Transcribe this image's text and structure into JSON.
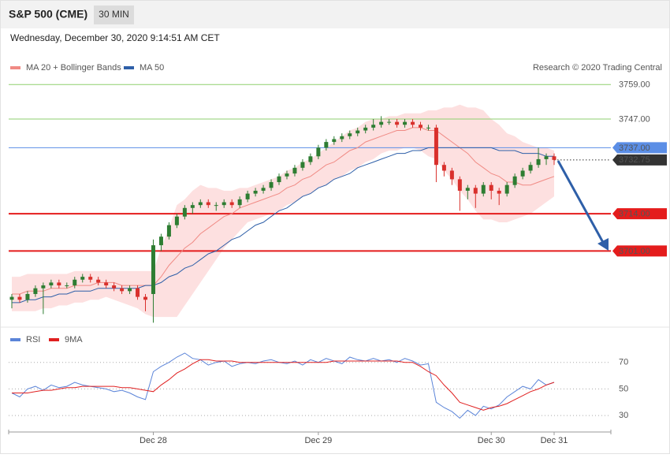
{
  "header": {
    "symbol": "S&P 500 (CME)",
    "interval": "30 MIN",
    "timestamp": "Wednesday, December 30, 2020 9:14:51 AM CET",
    "credit": "Research © 2020 Trading Central"
  },
  "chart_data": [
    {
      "type": "candlestick",
      "up_color": "#2e7d32",
      "down_color": "#d9302c",
      "band_color": "#fde0e0",
      "ylim": [
        3675,
        3772
      ],
      "open": [
        3684,
        3685,
        3684,
        3686,
        3688,
        3689,
        3690,
        3689,
        3689,
        3691,
        3692,
        3691,
        3690,
        3689,
        3688,
        3687,
        3688,
        3685,
        3686,
        3703,
        3706,
        3710,
        3713,
        3716,
        3717,
        3718,
        3717,
        3717,
        3718,
        3717,
        3719,
        3721,
        3722,
        3723,
        3725,
        3727,
        3728,
        3730,
        3732,
        3734,
        3737,
        3739,
        3740,
        3741,
        3742,
        3743,
        3744,
        3745,
        3746,
        3746,
        3745,
        3746,
        3745,
        3744,
        3744,
        3731,
        3729,
        3726,
        3722,
        3723,
        3721,
        3724,
        3722,
        3721,
        3724,
        3727,
        3729,
        3731,
        3733,
        3734
      ],
      "high": [
        3686,
        3686,
        3687,
        3689,
        3690,
        3691,
        3691,
        3690,
        3692,
        3693,
        3693,
        3692,
        3691,
        3690,
        3689,
        3689,
        3689,
        3686,
        3705,
        3707,
        3711,
        3714,
        3717,
        3718,
        3719,
        3719,
        3718,
        3719,
        3719,
        3720,
        3722,
        3723,
        3724,
        3726,
        3728,
        3729,
        3731,
        3733,
        3735,
        3738,
        3740,
        3741,
        3742,
        3743,
        3744,
        3745,
        3747,
        3748,
        3747,
        3747,
        3747,
        3747,
        3746,
        3745,
        3745,
        3732,
        3730,
        3727,
        3724,
        3724,
        3725,
        3725,
        3723,
        3725,
        3728,
        3730,
        3732,
        3737,
        3735,
        3735
      ],
      "low": [
        3681,
        3683,
        3683,
        3685,
        3679,
        3688,
        3688,
        3688,
        3688,
        3690,
        3690,
        3689,
        3688,
        3687,
        3686,
        3686,
        3684,
        3680,
        3676,
        3701,
        3705,
        3709,
        3712,
        3714,
        3716,
        3716,
        3715,
        3716,
        3716,
        3716,
        3718,
        3720,
        3721,
        3722,
        3724,
        3726,
        3727,
        3729,
        3731,
        3733,
        3736,
        3738,
        3739,
        3740,
        3741,
        3742,
        3743,
        3744,
        3745,
        3744,
        3744,
        3744,
        3743,
        3743,
        3725,
        3727,
        3724,
        3715,
        3719,
        3716,
        3720,
        3719,
        3717,
        3720,
        3723,
        3726,
        3728,
        3730,
        3731,
        3731
      ],
      "close": [
        3685,
        3684,
        3686,
        3688,
        3689,
        3690,
        3689,
        3689,
        3691,
        3692,
        3691,
        3690,
        3689,
        3688,
        3687,
        3688,
        3685,
        3684,
        3703,
        3706,
        3710,
        3713,
        3716,
        3717,
        3718,
        3717,
        3717,
        3718,
        3717,
        3719,
        3721,
        3722,
        3723,
        3725,
        3727,
        3728,
        3730,
        3732,
        3734,
        3737,
        3739,
        3740,
        3741,
        3742,
        3743,
        3744,
        3745,
        3746,
        3746,
        3745,
        3746,
        3745,
        3744,
        3744,
        3731,
        3729,
        3726,
        3722,
        3723,
        3721,
        3724,
        3722,
        3721,
        3724,
        3727,
        3729,
        3731,
        3733,
        3734,
        3732.75
      ],
      "series": [
        {
          "name": "MA 20 + Bollinger Bands",
          "color": "#f08a84",
          "values": [
            3686,
            3686,
            3687,
            3687,
            3687,
            3688,
            3688,
            3688,
            3689,
            3689,
            3689,
            3690,
            3690,
            3690,
            3689,
            3689,
            3689,
            3689,
            3689,
            3692,
            3696,
            3699,
            3702,
            3704,
            3707,
            3709,
            3711,
            3713,
            3714,
            3716,
            3717,
            3718,
            3719,
            3720,
            3721,
            3723,
            3724,
            3726,
            3727,
            3729,
            3731,
            3732,
            3734,
            3736,
            3737,
            3739,
            3740,
            3741,
            3742,
            3743,
            3743,
            3744,
            3744,
            3743,
            3743,
            3741,
            3739,
            3737,
            3735,
            3732,
            3730,
            3728,
            3727,
            3725,
            3725,
            3724,
            3724,
            3725,
            3726,
            3727
          ],
          "upper": [
            3692,
            3692,
            3693,
            3693,
            3693,
            3693,
            3693,
            3693,
            3694,
            3694,
            3694,
            3694,
            3694,
            3694,
            3694,
            3694,
            3694,
            3694,
            3694,
            3702,
            3709,
            3717,
            3719,
            3722,
            3724,
            3723,
            3723,
            3722,
            3722,
            3723,
            3723,
            3724,
            3725,
            3726,
            3727,
            3729,
            3730,
            3732,
            3733,
            3735,
            3737,
            3739,
            3741,
            3743,
            3744,
            3746,
            3747,
            3747,
            3748,
            3748,
            3749,
            3749,
            3749,
            3750,
            3750,
            3751,
            3751,
            3752,
            3751,
            3751,
            3750,
            3747,
            3745,
            3742,
            3741,
            3739,
            3738,
            3737,
            3737,
            3736
          ],
          "lower": [
            3680,
            3680,
            3680,
            3680,
            3681,
            3681,
            3682,
            3682,
            3683,
            3683,
            3684,
            3684,
            3685,
            3684,
            3683,
            3682,
            3681,
            3679,
            3678,
            3678,
            3678,
            3678,
            3682,
            3686,
            3690,
            3694,
            3698,
            3702,
            3705,
            3708,
            3711,
            3712,
            3713,
            3714,
            3715,
            3717,
            3718,
            3720,
            3721,
            3723,
            3724,
            3726,
            3727,
            3729,
            3730,
            3732,
            3733,
            3735,
            3736,
            3736,
            3737,
            3737,
            3736,
            3734,
            3733,
            3729,
            3726,
            3722,
            3719,
            3715,
            3712,
            3712,
            3711,
            3711,
            3712,
            3713,
            3714,
            3716,
            3718,
            3720
          ]
        },
        {
          "name": "MA 50",
          "color": "#2e5fa8",
          "values": [
            3683,
            3683,
            3684,
            3684,
            3685,
            3685,
            3686,
            3686,
            3687,
            3687,
            3687,
            3688,
            3688,
            3688,
            3688,
            3688,
            3688,
            3689,
            3689,
            3690,
            3692,
            3693,
            3695,
            3696,
            3698,
            3700,
            3701,
            3703,
            3705,
            3706,
            3708,
            3710,
            3711,
            3713,
            3715,
            3716,
            3718,
            3720,
            3721,
            3723,
            3724,
            3726,
            3727,
            3728,
            3730,
            3731,
            3732,
            3733,
            3734,
            3735,
            3735,
            3736,
            3736,
            3737,
            3737,
            3737,
            3737,
            3737,
            3737,
            3737,
            3737,
            3737,
            3736,
            3736,
            3736,
            3735,
            3735,
            3735,
            3734,
            3734
          ]
        }
      ],
      "levels": [
        {
          "value": 3759,
          "label": "3759.00",
          "color": "#8fcf6f",
          "text_color": "#4f9a1c",
          "boxed": false,
          "dotted": false,
          "thick": false
        },
        {
          "value": 3747,
          "label": "3747.00",
          "color": "#8fcf6f",
          "text_color": "#4f9a1c",
          "boxed": false,
          "dotted": false,
          "thick": false
        },
        {
          "value": 3737,
          "label": "3737.00",
          "color": "#5b8ee6",
          "text_color": "#ffffff",
          "boxed": true,
          "dotted": false,
          "thick": false
        },
        {
          "value": 3732.75,
          "label": "3732.75",
          "color": "#333333",
          "text_color": "#ffffff",
          "boxed": true,
          "dotted": true,
          "thick": false
        },
        {
          "value": 3714,
          "label": "3714.00",
          "color": "#e41c1c",
          "text_color": "#ffffff",
          "boxed": true,
          "dotted": false,
          "thick": true
        },
        {
          "value": 3701,
          "label": "3701.00",
          "color": "#e41c1c",
          "text_color": "#ffffff",
          "boxed": true,
          "dotted": false,
          "thick": true
        }
      ]
    },
    {
      "type": "line",
      "ylim": [
        20,
        90
      ],
      "yticks": [
        30,
        50,
        70
      ],
      "grid": true,
      "categories": [
        null,
        null,
        null,
        null,
        null,
        null,
        null,
        null,
        null,
        null,
        null,
        null,
        null,
        null,
        null,
        null,
        null,
        null,
        "Dec 28",
        null,
        null,
        null,
        null,
        null,
        null,
        null,
        null,
        null,
        null,
        null,
        null,
        null,
        null,
        null,
        null,
        null,
        null,
        null,
        null,
        "Dec 29",
        null,
        null,
        null,
        null,
        null,
        null,
        null,
        null,
        null,
        null,
        null,
        null,
        null,
        null,
        null,
        null,
        null,
        null,
        null,
        null,
        null,
        "Dec 30",
        null,
        null,
        null,
        null,
        null,
        null,
        null,
        "Dec 31"
      ],
      "series": [
        {
          "name": "RSI",
          "color": "#5b84d8",
          "values": [
            47,
            44,
            50,
            52,
            49,
            53,
            51,
            52,
            55,
            53,
            52,
            51,
            50,
            48,
            49,
            47,
            44,
            42,
            63,
            67,
            70,
            74,
            77,
            73,
            72,
            68,
            70,
            71,
            67,
            69,
            70,
            69,
            71,
            72,
            70,
            69,
            71,
            68,
            72,
            70,
            73,
            71,
            69,
            74,
            72,
            71,
            73,
            71,
            72,
            70,
            73,
            71,
            68,
            69,
            40,
            36,
            33,
            28,
            34,
            30,
            37,
            35,
            38,
            44,
            48,
            52,
            50,
            57,
            53,
            55
          ]
        },
        {
          "name": "9MA",
          "color": "#e02020",
          "values": [
            47,
            47,
            47,
            48,
            49,
            49,
            50,
            51,
            51,
            52,
            52,
            52,
            52,
            52,
            51,
            51,
            50,
            49,
            48,
            53,
            57,
            62,
            65,
            69,
            72,
            72,
            71,
            71,
            71,
            70,
            70,
            70,
            70,
            70,
            70,
            70,
            70,
            70,
            70,
            70,
            70,
            71,
            71,
            71,
            71,
            71,
            71,
            71,
            71,
            71,
            70,
            70,
            67,
            63,
            60,
            53,
            47,
            40,
            38,
            36,
            34,
            36,
            37,
            39,
            42,
            45,
            48,
            50,
            53,
            55
          ]
        }
      ]
    }
  ]
}
